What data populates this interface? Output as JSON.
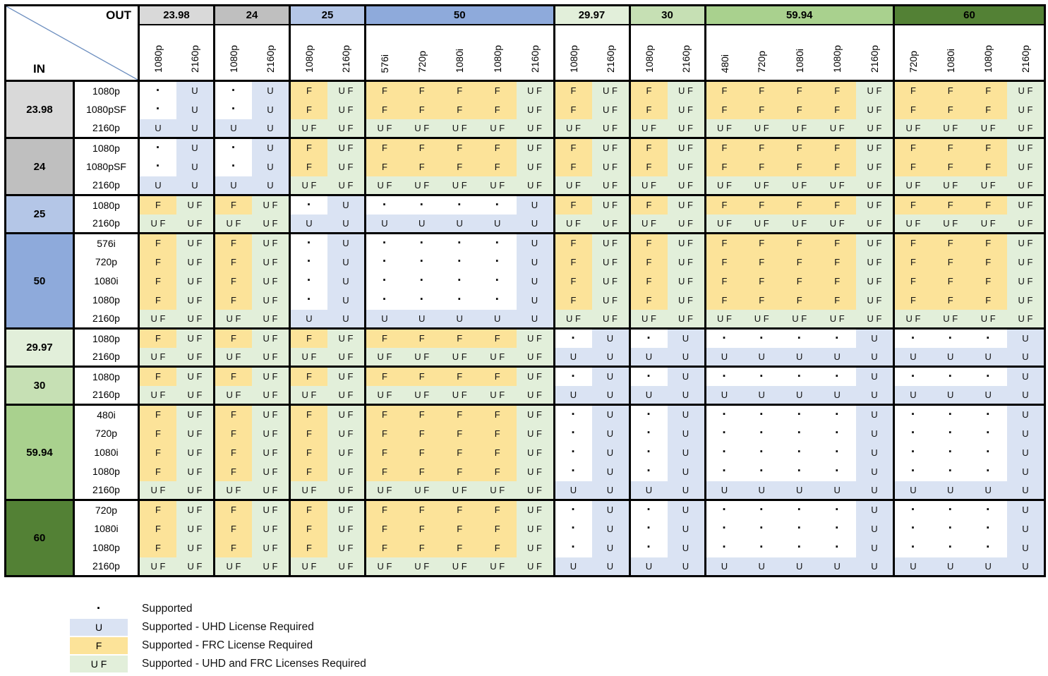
{
  "colors": {
    "border": "#000000",
    "diagonal": "#6c8ebf",
    "background": "#ffffff"
  },
  "cell_types": {
    ".": {
      "display": "·",
      "bg": "#ffffff"
    },
    "U": {
      "display": "U",
      "bg": "#dae3f3"
    },
    "F": {
      "display": "F",
      "bg": "#fce399"
    },
    "UF": {
      "display": "U F",
      "bg": "#e2efda"
    }
  },
  "legend": {
    "items": [
      {
        "code": ".",
        "label": "Supported"
      },
      {
        "code": "U",
        "label": "Supported - UHD License Required"
      },
      {
        "code": "F",
        "label": "Supported - FRC License Required"
      },
      {
        "code": "UF",
        "label": "Supported - UHD and FRC Licenses Required"
      }
    ]
  },
  "matrix": {
    "corner": {
      "out": "OUT",
      "in": "IN"
    },
    "out_groups": [
      {
        "rate": "23.98",
        "bg": "#d9d9d9",
        "cols": [
          "1080p",
          "2160p"
        ]
      },
      {
        "rate": "24",
        "bg": "#bfbfbf",
        "cols": [
          "1080p",
          "2160p"
        ]
      },
      {
        "rate": "25",
        "bg": "#b4c6e7",
        "cols": [
          "1080p",
          "2160p"
        ]
      },
      {
        "rate": "50",
        "bg": "#8eaadb",
        "cols": [
          "576i",
          "720p",
          "1080i",
          "1080p",
          "2160p"
        ]
      },
      {
        "rate": "29.97",
        "bg": "#e2efda",
        "cols": [
          "1080p",
          "2160p"
        ]
      },
      {
        "rate": "30",
        "bg": "#c6e0b4",
        "cols": [
          "1080p",
          "2160p"
        ]
      },
      {
        "rate": "59.94",
        "bg": "#a9d18e",
        "cols": [
          "480i",
          "720p",
          "1080i",
          "1080p",
          "2160p"
        ]
      },
      {
        "rate": "60",
        "bg": "#538135",
        "cols": [
          "720p",
          "1080i",
          "1080p",
          "2160p"
        ]
      }
    ],
    "in_groups": [
      {
        "rate": "23.98",
        "bg": "#d9d9d9",
        "rows": [
          {
            "res": "1080p",
            "cells": [
              ".",
              "U",
              ".",
              "U",
              "F",
              "UF",
              "F",
              "F",
              "F",
              "F",
              "UF",
              "F",
              "UF",
              "F",
              "UF",
              "F",
              "F",
              "F",
              "F",
              "UF",
              "F",
              "F",
              "F",
              "UF"
            ]
          },
          {
            "res": "1080pSF",
            "cells": [
              ".",
              "U",
              ".",
              "U",
              "F",
              "UF",
              "F",
              "F",
              "F",
              "F",
              "UF",
              "F",
              "UF",
              "F",
              "UF",
              "F",
              "F",
              "F",
              "F",
              "UF",
              "F",
              "F",
              "F",
              "UF"
            ]
          },
          {
            "res": "2160p",
            "cells": [
              "U",
              "U",
              "U",
              "U",
              "UF",
              "UF",
              "UF",
              "UF",
              "UF",
              "UF",
              "UF",
              "UF",
              "UF",
              "UF",
              "UF",
              "UF",
              "UF",
              "UF",
              "UF",
              "UF",
              "UF",
              "UF",
              "UF",
              "UF"
            ]
          }
        ]
      },
      {
        "rate": "24",
        "bg": "#bfbfbf",
        "rows": [
          {
            "res": "1080p",
            "cells": [
              ".",
              "U",
              ".",
              "U",
              "F",
              "UF",
              "F",
              "F",
              "F",
              "F",
              "UF",
              "F",
              "UF",
              "F",
              "UF",
              "F",
              "F",
              "F",
              "F",
              "UF",
              "F",
              "F",
              "F",
              "UF"
            ]
          },
          {
            "res": "1080pSF",
            "cells": [
              ".",
              "U",
              ".",
              "U",
              "F",
              "UF",
              "F",
              "F",
              "F",
              "F",
              "UF",
              "F",
              "UF",
              "F",
              "UF",
              "F",
              "F",
              "F",
              "F",
              "UF",
              "F",
              "F",
              "F",
              "UF"
            ]
          },
          {
            "res": "2160p",
            "cells": [
              "U",
              "U",
              "U",
              "U",
              "UF",
              "UF",
              "UF",
              "UF",
              "UF",
              "UF",
              "UF",
              "UF",
              "UF",
              "UF",
              "UF",
              "UF",
              "UF",
              "UF",
              "UF",
              "UF",
              "UF",
              "UF",
              "UF",
              "UF"
            ]
          }
        ]
      },
      {
        "rate": "25",
        "bg": "#b4c6e7",
        "rows": [
          {
            "res": "1080p",
            "cells": [
              "F",
              "UF",
              "F",
              "UF",
              ".",
              "U",
              ".",
              ".",
              ".",
              ".",
              "U",
              "F",
              "UF",
              "F",
              "UF",
              "F",
              "F",
              "F",
              "F",
              "UF",
              "F",
              "F",
              "F",
              "UF"
            ]
          },
          {
            "res": "2160p",
            "cells": [
              "UF",
              "UF",
              "UF",
              "UF",
              "U",
              "U",
              "U",
              "U",
              "U",
              "U",
              "U",
              "UF",
              "UF",
              "UF",
              "UF",
              "UF",
              "UF",
              "UF",
              "UF",
              "UF",
              "UF",
              "UF",
              "UF",
              "UF"
            ]
          }
        ]
      },
      {
        "rate": "50",
        "bg": "#8eaadb",
        "rows": [
          {
            "res": "576i",
            "cells": [
              "F",
              "UF",
              "F",
              "UF",
              ".",
              "U",
              ".",
              ".",
              ".",
              ".",
              "U",
              "F",
              "UF",
              "F",
              "UF",
              "F",
              "F",
              "F",
              "F",
              "UF",
              "F",
              "F",
              "F",
              "UF"
            ]
          },
          {
            "res": "720p",
            "cells": [
              "F",
              "UF",
              "F",
              "UF",
              ".",
              "U",
              ".",
              ".",
              ".",
              ".",
              "U",
              "F",
              "UF",
              "F",
              "UF",
              "F",
              "F",
              "F",
              "F",
              "UF",
              "F",
              "F",
              "F",
              "UF"
            ]
          },
          {
            "res": "1080i",
            "cells": [
              "F",
              "UF",
              "F",
              "UF",
              ".",
              "U",
              ".",
              ".",
              ".",
              ".",
              "U",
              "F",
              "UF",
              "F",
              "UF",
              "F",
              "F",
              "F",
              "F",
              "UF",
              "F",
              "F",
              "F",
              "UF"
            ]
          },
          {
            "res": "1080p",
            "cells": [
              "F",
              "UF",
              "F",
              "UF",
              ".",
              "U",
              ".",
              ".",
              ".",
              ".",
              "U",
              "F",
              "UF",
              "F",
              "UF",
              "F",
              "F",
              "F",
              "F",
              "UF",
              "F",
              "F",
              "F",
              "UF"
            ]
          },
          {
            "res": "2160p",
            "cells": [
              "UF",
              "UF",
              "UF",
              "UF",
              "U",
              "U",
              "U",
              "U",
              "U",
              "U",
              "U",
              "UF",
              "UF",
              "UF",
              "UF",
              "UF",
              "UF",
              "UF",
              "UF",
              "UF",
              "UF",
              "UF",
              "UF",
              "UF"
            ]
          }
        ]
      },
      {
        "rate": "29.97",
        "bg": "#e2efda",
        "rows": [
          {
            "res": "1080p",
            "cells": [
              "F",
              "UF",
              "F",
              "UF",
              "F",
              "UF",
              "F",
              "F",
              "F",
              "F",
              "UF",
              ".",
              "U",
              ".",
              "U",
              ".",
              ".",
              ".",
              ".",
              "U",
              ".",
              ".",
              ".",
              "U"
            ]
          },
          {
            "res": "2160p",
            "cells": [
              "UF",
              "UF",
              "UF",
              "UF",
              "UF",
              "UF",
              "UF",
              "UF",
              "UF",
              "UF",
              "UF",
              "U",
              "U",
              "U",
              "U",
              "U",
              "U",
              "U",
              "U",
              "U",
              "U",
              "U",
              "U",
              "U"
            ]
          }
        ]
      },
      {
        "rate": "30",
        "bg": "#c6e0b4",
        "rows": [
          {
            "res": "1080p",
            "cells": [
              "F",
              "UF",
              "F",
              "UF",
              "F",
              "UF",
              "F",
              "F",
              "F",
              "F",
              "UF",
              ".",
              "U",
              ".",
              "U",
              ".",
              ".",
              ".",
              ".",
              "U",
              ".",
              ".",
              ".",
              "U"
            ]
          },
          {
            "res": "2160p",
            "cells": [
              "UF",
              "UF",
              "UF",
              "UF",
              "UF",
              "UF",
              "UF",
              "UF",
              "UF",
              "UF",
              "UF",
              "U",
              "U",
              "U",
              "U",
              "U",
              "U",
              "U",
              "U",
              "U",
              "U",
              "U",
              "U",
              "U"
            ]
          }
        ]
      },
      {
        "rate": "59.94",
        "bg": "#a9d18e",
        "rows": [
          {
            "res": "480i",
            "cells": [
              "F",
              "UF",
              "F",
              "UF",
              "F",
              "UF",
              "F",
              "F",
              "F",
              "F",
              "UF",
              ".",
              "U",
              ".",
              "U",
              ".",
              ".",
              ".",
              ".",
              "U",
              ".",
              ".",
              ".",
              "U"
            ]
          },
          {
            "res": "720p",
            "cells": [
              "F",
              "UF",
              "F",
              "UF",
              "F",
              "UF",
              "F",
              "F",
              "F",
              "F",
              "UF",
              ".",
              "U",
              ".",
              "U",
              ".",
              ".",
              ".",
              ".",
              "U",
              ".",
              ".",
              ".",
              "U"
            ]
          },
          {
            "res": "1080i",
            "cells": [
              "F",
              "UF",
              "F",
              "UF",
              "F",
              "UF",
              "F",
              "F",
              "F",
              "F",
              "UF",
              ".",
              "U",
              ".",
              "U",
              ".",
              ".",
              ".",
              ".",
              "U",
              ".",
              ".",
              ".",
              "U"
            ]
          },
          {
            "res": "1080p",
            "cells": [
              "F",
              "UF",
              "F",
              "UF",
              "F",
              "UF",
              "F",
              "F",
              "F",
              "F",
              "UF",
              ".",
              "U",
              ".",
              "U",
              ".",
              ".",
              ".",
              ".",
              "U",
              ".",
              ".",
              ".",
              "U"
            ]
          },
          {
            "res": "2160p",
            "cells": [
              "UF",
              "UF",
              "UF",
              "UF",
              "UF",
              "UF",
              "UF",
              "UF",
              "UF",
              "UF",
              "UF",
              "U",
              "U",
              "U",
              "U",
              "U",
              "U",
              "U",
              "U",
              "U",
              "U",
              "U",
              "U",
              "U"
            ]
          }
        ]
      },
      {
        "rate": "60",
        "bg": "#538135",
        "rows": [
          {
            "res": "720p",
            "cells": [
              "F",
              "UF",
              "F",
              "UF",
              "F",
              "UF",
              "F",
              "F",
              "F",
              "F",
              "UF",
              ".",
              "U",
              ".",
              "U",
              ".",
              ".",
              ".",
              ".",
              "U",
              ".",
              ".",
              ".",
              "U"
            ]
          },
          {
            "res": "1080i",
            "cells": [
              "F",
              "UF",
              "F",
              "UF",
              "F",
              "UF",
              "F",
              "F",
              "F",
              "F",
              "UF",
              ".",
              "U",
              ".",
              "U",
              ".",
              ".",
              ".",
              ".",
              "U",
              ".",
              ".",
              ".",
              "U"
            ]
          },
          {
            "res": "1080p",
            "cells": [
              "F",
              "UF",
              "F",
              "UF",
              "F",
              "UF",
              "F",
              "F",
              "F",
              "F",
              "UF",
              ".",
              "U",
              ".",
              "U",
              ".",
              ".",
              ".",
              ".",
              "U",
              ".",
              ".",
              ".",
              "U"
            ]
          },
          {
            "res": "2160p",
            "cells": [
              "UF",
              "UF",
              "UF",
              "UF",
              "UF",
              "UF",
              "UF",
              "UF",
              "UF",
              "UF",
              "UF",
              "U",
              "U",
              "U",
              "U",
              "U",
              "U",
              "U",
              "U",
              "U",
              "U",
              "U",
              "U",
              "U"
            ]
          }
        ]
      }
    ]
  }
}
